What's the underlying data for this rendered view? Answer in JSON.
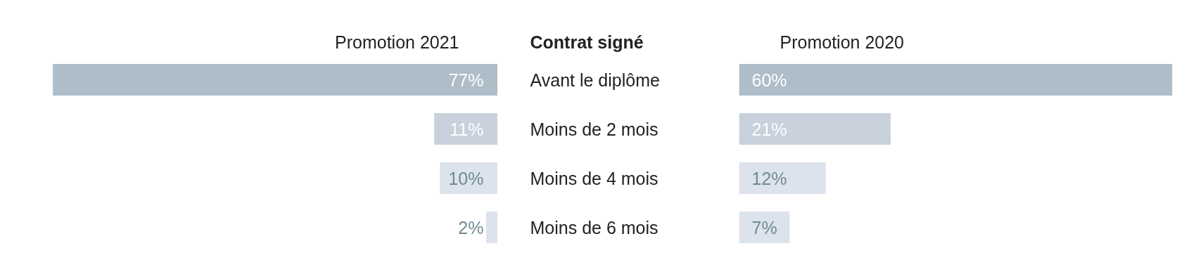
{
  "chart_data": [
    {
      "type": "bar",
      "orientation": "horizontal",
      "title": "Promotion 2021",
      "ylabel": "Contrat signé",
      "categories": [
        "Avant le diplôme",
        "Moins de 2 mois",
        "Moins de 4 mois",
        "Moins de 6 mois"
      ],
      "values": [
        77,
        11,
        10,
        2
      ],
      "value_labels": [
        "77%",
        "11%",
        "10%",
        "2%"
      ],
      "colors": [
        "#aebdc8",
        "#c8d1dc",
        "#dce3ed",
        "#dce3ed"
      ],
      "tick_labels": false
    },
    {
      "type": "bar",
      "orientation": "horizontal",
      "title": "Promotion 2020",
      "categories": [
        null,
        null,
        null,
        null
      ],
      "values": [
        60,
        21,
        12,
        7
      ],
      "value_labels": [
        "60%",
        "21%",
        "12%",
        "7%"
      ],
      "colors": [
        "#aebdc8",
        "#c8d1dc",
        "#dce3ed",
        "#dce3ed"
      ],
      "tick_labels": false
    }
  ]
}
